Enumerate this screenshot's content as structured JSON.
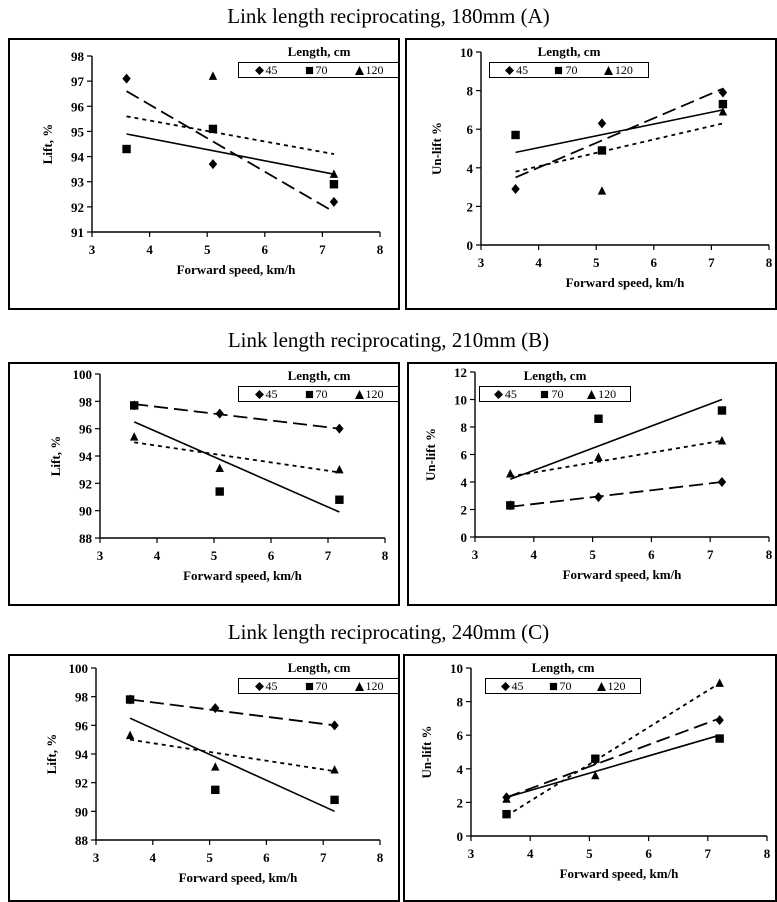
{
  "sections": [
    {
      "title": "Link length reciprocating, 180mm (A)"
    },
    {
      "title": "Link length reciprocating, 210mm (B)"
    },
    {
      "title": "Link length reciprocating, 240mm (C)"
    }
  ],
  "legend": {
    "title": "Length, cm",
    "items": [
      {
        "label": "45",
        "marker": "diamond"
      },
      {
        "label": "70",
        "marker": "square"
      },
      {
        "label": "120",
        "marker": "triangle"
      }
    ]
  },
  "chart_data": [
    {
      "type": "scatter",
      "xlabel": "Forward speed, km/h",
      "ylabel": "Lift, %",
      "xlim": [
        3,
        8
      ],
      "xticks": [
        3,
        4,
        5,
        6,
        7,
        8
      ],
      "ylim": [
        91,
        98
      ],
      "yticks": [
        91,
        92,
        93,
        94,
        95,
        96,
        97,
        98
      ],
      "series": [
        {
          "name": "45",
          "marker": "diamond",
          "x": [
            3.6,
            5.1,
            7.2
          ],
          "y": [
            97.1,
            93.7,
            92.2
          ],
          "trend": {
            "style": "long-dash",
            "y_at_start": 96.6,
            "y_at_end": 91.8
          }
        },
        {
          "name": "70",
          "marker": "square",
          "x": [
            3.6,
            5.1,
            7.2
          ],
          "y": [
            94.3,
            95.1,
            92.9
          ],
          "trend": {
            "style": "solid",
            "y_at_start": 94.9,
            "y_at_end": 93.3
          }
        },
        {
          "name": "120",
          "marker": "triangle",
          "x": [
            3.6,
            5.1,
            7.2
          ],
          "y": [
            94.3,
            97.2,
            93.3
          ],
          "trend": {
            "style": "short-dash",
            "y_at_start": 95.6,
            "y_at_end": 94.1
          }
        }
      ]
    },
    {
      "type": "scatter",
      "xlabel": "Forward speed, km/h",
      "ylabel": "Un-lift %",
      "xlim": [
        3,
        8
      ],
      "xticks": [
        3,
        4,
        5,
        6,
        7,
        8
      ],
      "ylim": [
        0,
        10
      ],
      "yticks": [
        0,
        2,
        4,
        6,
        8,
        10
      ],
      "series": [
        {
          "name": "45",
          "marker": "diamond",
          "x": [
            3.6,
            5.1,
            7.2
          ],
          "y": [
            2.9,
            6.3,
            7.9
          ],
          "trend": {
            "style": "long-dash",
            "y_at_start": 3.5,
            "y_at_end": 8.1
          }
        },
        {
          "name": "70",
          "marker": "square",
          "x": [
            3.6,
            5.1,
            7.2
          ],
          "y": [
            5.7,
            4.9,
            7.3
          ],
          "trend": {
            "style": "solid",
            "y_at_start": 4.8,
            "y_at_end": 7.0
          }
        },
        {
          "name": "120",
          "marker": "triangle",
          "x": [
            3.6,
            5.1,
            7.2
          ],
          "y": [
            5.7,
            2.8,
            6.9
          ],
          "trend": {
            "style": "short-dash",
            "y_at_start": 3.8,
            "y_at_end": 6.3
          }
        }
      ]
    },
    {
      "type": "scatter",
      "xlabel": "Forward speed, km/h",
      "ylabel": "Lift, %",
      "xlim": [
        3,
        8
      ],
      "xticks": [
        3,
        4,
        5,
        6,
        7,
        8
      ],
      "ylim": [
        88,
        100
      ],
      "yticks": [
        88,
        90,
        92,
        94,
        96,
        98,
        100
      ],
      "series": [
        {
          "name": "45",
          "marker": "diamond",
          "x": [
            3.6,
            5.1,
            7.2
          ],
          "y": [
            97.7,
            97.1,
            96.0
          ],
          "trend": {
            "style": "long-dash",
            "y_at_start": 97.8,
            "y_at_end": 96.0
          }
        },
        {
          "name": "70",
          "marker": "square",
          "x": [
            3.6,
            5.1,
            7.2
          ],
          "y": [
            97.7,
            91.4,
            90.8
          ],
          "trend": {
            "style": "solid",
            "y_at_start": 96.5,
            "y_at_end": 89.9
          }
        },
        {
          "name": "120",
          "marker": "triangle",
          "x": [
            3.6,
            5.1,
            7.2
          ],
          "y": [
            95.4,
            93.1,
            93.0
          ],
          "trend": {
            "style": "short-dash",
            "y_at_start": 95.0,
            "y_at_end": 92.8
          }
        }
      ]
    },
    {
      "type": "scatter",
      "xlabel": "Forward speed, km/h",
      "ylabel": "Un-lift %",
      "xlim": [
        3,
        8
      ],
      "xticks": [
        3,
        4,
        5,
        6,
        7,
        8
      ],
      "ylim": [
        0,
        12
      ],
      "yticks": [
        0,
        2,
        4,
        6,
        8,
        10,
        12
      ],
      "series": [
        {
          "name": "45",
          "marker": "diamond",
          "x": [
            3.6,
            5.1,
            7.2
          ],
          "y": [
            2.3,
            2.9,
            4.0
          ],
          "trend": {
            "style": "long-dash",
            "y_at_start": 2.2,
            "y_at_end": 4.0
          }
        },
        {
          "name": "70",
          "marker": "square",
          "x": [
            3.6,
            5.1,
            7.2
          ],
          "y": [
            2.3,
            8.6,
            9.2
          ],
          "trend": {
            "style": "solid",
            "y_at_start": 4.2,
            "y_at_end": 10.0
          }
        },
        {
          "name": "120",
          "marker": "triangle",
          "x": [
            3.6,
            5.1,
            7.2
          ],
          "y": [
            4.6,
            5.8,
            7.0
          ],
          "trend": {
            "style": "short-dash",
            "y_at_start": 4.4,
            "y_at_end": 7.0
          }
        }
      ]
    },
    {
      "type": "scatter",
      "xlabel": "Forward speed, km/h",
      "ylabel": "Lift, %",
      "xlim": [
        3,
        8
      ],
      "xticks": [
        3,
        4,
        5,
        6,
        7,
        8
      ],
      "ylim": [
        88,
        100
      ],
      "yticks": [
        88,
        90,
        92,
        94,
        96,
        98,
        100
      ],
      "series": [
        {
          "name": "45",
          "marker": "diamond",
          "x": [
            3.6,
            5.1,
            7.2
          ],
          "y": [
            97.8,
            97.2,
            96.0
          ],
          "trend": {
            "style": "long-dash",
            "y_at_start": 97.8,
            "y_at_end": 96.0
          }
        },
        {
          "name": "70",
          "marker": "square",
          "x": [
            3.6,
            5.1,
            7.2
          ],
          "y": [
            97.8,
            91.5,
            90.8
          ],
          "trend": {
            "style": "solid",
            "y_at_start": 96.5,
            "y_at_end": 90.0
          }
        },
        {
          "name": "120",
          "marker": "triangle",
          "x": [
            3.6,
            5.1,
            7.2
          ],
          "y": [
            95.3,
            93.1,
            92.9
          ],
          "trend": {
            "style": "short-dash",
            "y_at_start": 95.0,
            "y_at_end": 92.8
          }
        }
      ]
    },
    {
      "type": "scatter",
      "xlabel": "Forward speed, km/h",
      "ylabel": "Un-lift %",
      "xlim": [
        3,
        8
      ],
      "xticks": [
        3,
        4,
        5,
        6,
        7,
        8
      ],
      "ylim": [
        0,
        10
      ],
      "yticks": [
        0,
        2,
        4,
        6,
        8,
        10
      ],
      "series": [
        {
          "name": "45",
          "marker": "diamond",
          "x": [
            3.6,
            5.1,
            7.2
          ],
          "y": [
            2.3,
            4.5,
            6.9
          ],
          "trend": {
            "style": "long-dash",
            "y_at_start": 2.3,
            "y_at_end": 7.0
          }
        },
        {
          "name": "70",
          "marker": "square",
          "x": [
            3.6,
            5.1,
            7.2
          ],
          "y": [
            1.3,
            4.6,
            5.8
          ],
          "trend": {
            "style": "solid",
            "y_at_start": 2.3,
            "y_at_end": 6.0
          }
        },
        {
          "name": "120",
          "marker": "triangle",
          "x": [
            3.6,
            5.1,
            7.2
          ],
          "y": [
            2.2,
            3.6,
            9.1
          ],
          "trend": {
            "style": "short-dash",
            "y_at_start": 1.2,
            "y_at_end": 9.1
          }
        }
      ]
    }
  ]
}
